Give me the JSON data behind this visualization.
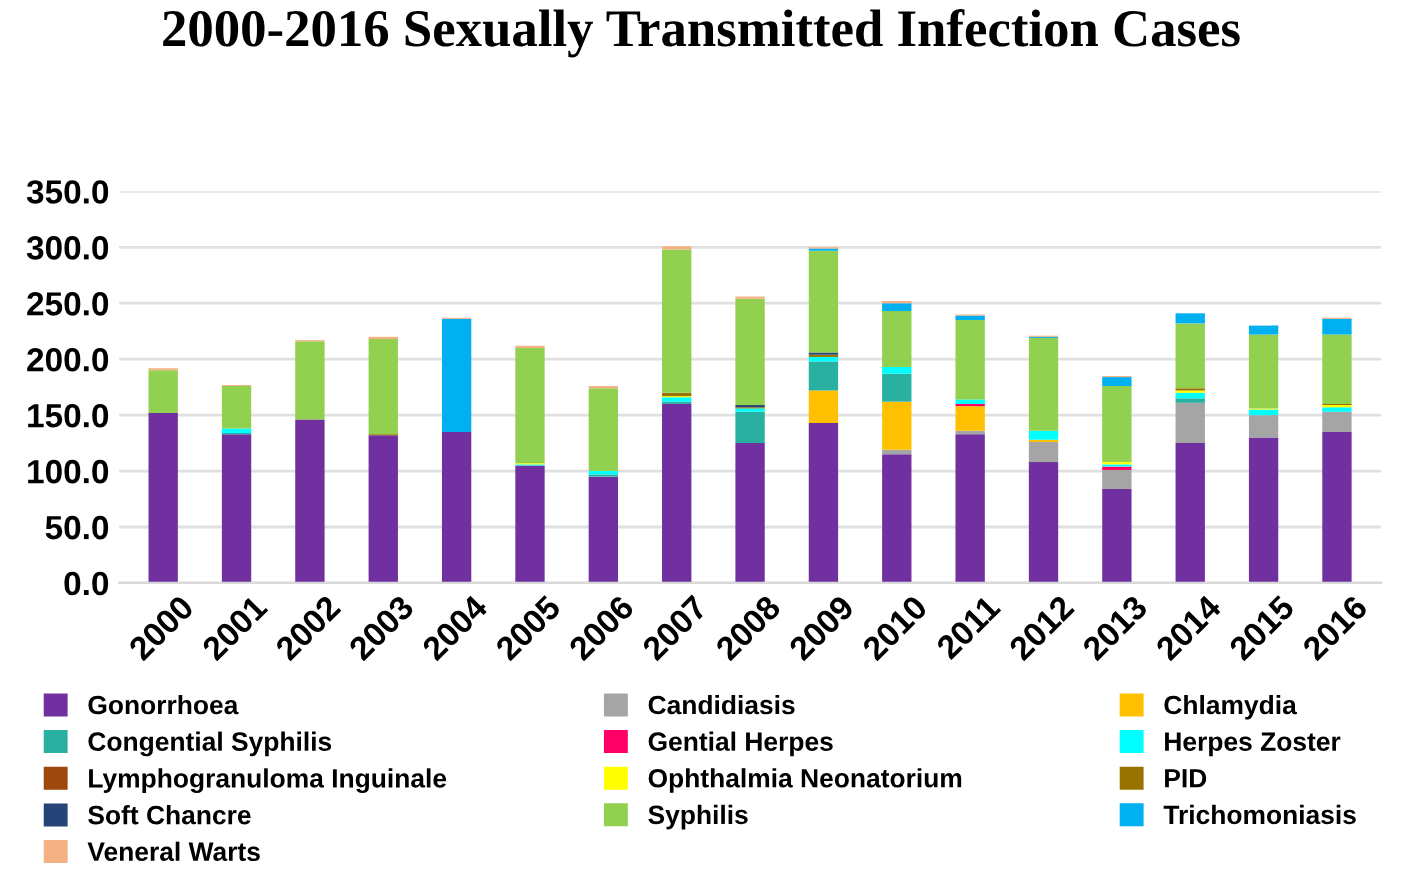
{
  "chart_data": {
    "type": "bar",
    "stacked": true,
    "title": "2000-2016 Sexually Transmitted Infection Cases",
    "categories": [
      "2000",
      "2001",
      "2002",
      "2003",
      "2004",
      "2005",
      "2006",
      "2007",
      "2008",
      "2009",
      "2010",
      "2011",
      "2012",
      "2013",
      "2014",
      "2015",
      "2016"
    ],
    "series": [
      {
        "name": "Gonorrhoea",
        "color": "#7030a0",
        "values": [
          152,
          133,
          146,
          132,
          135,
          105,
          95,
          160,
          125,
          143,
          115,
          133,
          108,
          84,
          125,
          130,
          135
        ]
      },
      {
        "name": "Candidiasis",
        "color": "#a5a5a5",
        "values": [
          0,
          0,
          0,
          0,
          0,
          0,
          0,
          0,
          0,
          0,
          4,
          3,
          18,
          17,
          36,
          20,
          18
        ]
      },
      {
        "name": "Chlamydia",
        "color": "#ffc000",
        "values": [
          0,
          0,
          0,
          0,
          0,
          0,
          0,
          0,
          0,
          29,
          43,
          22,
          2,
          0,
          0,
          0,
          0
        ]
      },
      {
        "name": "Congential Syphilis",
        "color": "#2ab0a0",
        "values": [
          0,
          1,
          0,
          0,
          0,
          0,
          2,
          2,
          28,
          26,
          25,
          0,
          0,
          0,
          4,
          0,
          0
        ]
      },
      {
        "name": "Gential Herpes",
        "color": "#ff0066",
        "values": [
          0,
          0,
          0,
          0,
          0,
          0,
          0,
          0,
          0,
          0,
          0,
          2,
          0,
          3,
          0,
          0,
          0
        ]
      },
      {
        "name": "Herpes Zoster",
        "color": "#00ffff",
        "values": [
          0,
          4,
          0,
          0,
          0,
          1,
          3,
          4,
          3,
          4,
          6,
          4,
          8,
          2,
          5,
          5,
          4
        ]
      },
      {
        "name": "Lymphogranuloma Inguinale",
        "color": "#9e480e",
        "values": [
          0,
          0,
          0,
          0,
          0,
          0,
          0,
          0,
          0,
          0,
          0,
          0,
          0,
          0,
          0,
          0,
          0
        ]
      },
      {
        "name": "Ophthalmia Neonatorium",
        "color": "#ffff00",
        "values": [
          0,
          0,
          0,
          0,
          0,
          1,
          0,
          1,
          0,
          0,
          0,
          0,
          0,
          2,
          2,
          1,
          2
        ]
      },
      {
        "name": "PID",
        "color": "#997300",
        "values": [
          0,
          0,
          0,
          1,
          0,
          0,
          0,
          3,
          1,
          2,
          0,
          0,
          0,
          0,
          2,
          0,
          1
        ]
      },
      {
        "name": "Soft Chancre",
        "color": "#264478",
        "values": [
          0,
          0,
          0,
          0,
          0,
          0,
          0,
          0,
          2,
          2,
          0,
          0,
          0,
          0,
          0,
          0,
          0
        ]
      },
      {
        "name": "Syphilis",
        "color": "#92d050",
        "values": [
          38,
          38,
          70,
          85,
          0,
          103,
          74,
          128,
          95,
          91,
          50,
          71,
          83,
          68,
          58,
          66,
          62
        ]
      },
      {
        "name": "Trichomoniasis",
        "color": "#00b0f0",
        "values": [
          0,
          0,
          0,
          0,
          101,
          0,
          0,
          0,
          0,
          2,
          7,
          4,
          1,
          8,
          9,
          8,
          14
        ]
      },
      {
        "name": "Veneral Warts",
        "color": "#f4b183",
        "values": [
          2,
          1,
          1,
          2,
          1,
          2,
          2,
          3,
          2,
          1,
          2,
          1,
          1,
          1,
          0,
          0,
          1
        ]
      }
    ],
    "ylim": [
      0,
      350
    ],
    "yticks": [
      {
        "value": 0,
        "label": "0.0"
      },
      {
        "value": 50,
        "label": "50.0"
      },
      {
        "value": 100,
        "label": "100.0"
      },
      {
        "value": 150,
        "label": "150.0"
      },
      {
        "value": 200,
        "label": "200.0"
      },
      {
        "value": 250,
        "label": "250.0"
      },
      {
        "value": 300,
        "label": "300.0"
      },
      {
        "value": 350,
        "label": "350.0"
      }
    ],
    "grid": "y",
    "legend": "bottom"
  }
}
